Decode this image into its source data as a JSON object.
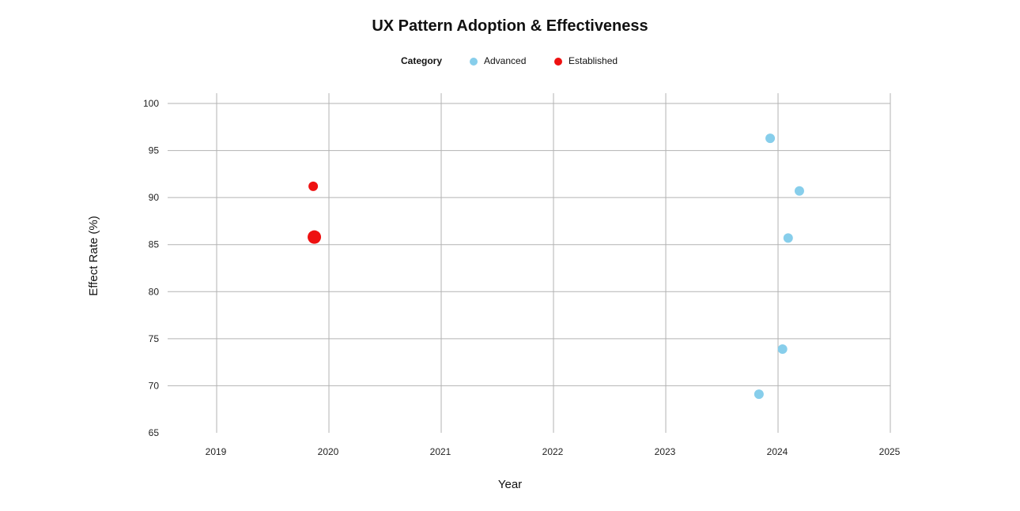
{
  "chart_data": {
    "type": "scatter",
    "title": "UX Pattern Adoption & Effectiveness",
    "xlabel": "Year",
    "ylabel": "Effect Rate (%)",
    "xlim": [
      2018.6,
      2025
    ],
    "ylim": [
      65,
      101
    ],
    "x_ticks": [
      "2019",
      "2020",
      "2021",
      "2022",
      "2023",
      "2024",
      "2025"
    ],
    "y_ticks": [
      "65",
      "70",
      "75",
      "80",
      "85",
      "90",
      "95",
      "100"
    ],
    "grid": true,
    "legend": {
      "title": "Category",
      "placement": "top-center",
      "entries": [
        {
          "name": "Advanced",
          "color": "#87CEEB"
        },
        {
          "name": "Established",
          "color": "#EE1111"
        }
      ]
    },
    "series": [
      {
        "name": "Advanced",
        "color": "#87CEEB",
        "points": [
          {
            "x": 2023.93,
            "y": 96.3
          },
          {
            "x": 2024.19,
            "y": 90.7
          },
          {
            "x": 2024.09,
            "y": 85.7
          },
          {
            "x": 2024.04,
            "y": 73.9
          },
          {
            "x": 2023.83,
            "y": 69.1
          }
        ]
      },
      {
        "name": "Established",
        "color": "#EE1111",
        "points": [
          {
            "x": 2019.86,
            "y": 91.2
          },
          {
            "x": 2019.87,
            "y": 85.8,
            "size": "large"
          }
        ]
      }
    ]
  }
}
